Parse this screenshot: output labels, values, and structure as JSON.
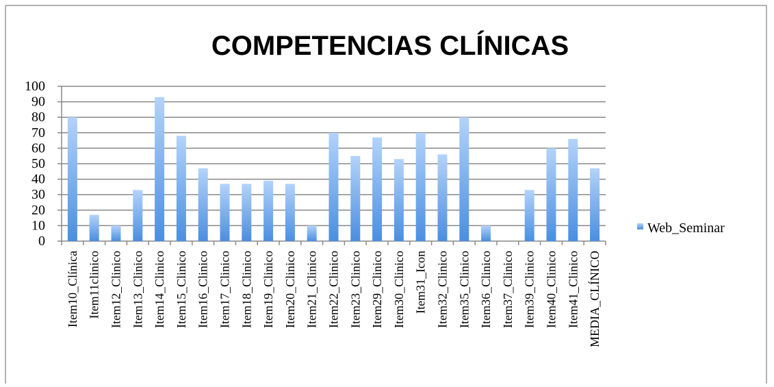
{
  "chart_data": {
    "type": "bar",
    "title": "COMPETENCIAS CLÍNICAS",
    "categories": [
      "Item10_Clínica",
      "Item11clinico",
      "Item12_Clinico",
      "Item13_Clinico",
      "Item14_Clinico",
      "Item15_Clinico",
      "Item16_Clinico",
      "Item17_Clinico",
      "Item18_Clinico",
      "Item19_Clinico",
      "Item20_Clinico",
      "Item21_Clinico",
      "Item22_Clinico",
      "Item23_Clinico",
      "Item29_Clinico",
      "Item30_Clinico",
      "Item31_Icon",
      "Item32_Clinico",
      "Item35_Clinico",
      "Item36_Clinico",
      "Item37_Clinico",
      "Item39_Clinico",
      "Item40_Clinico",
      "Item41_Clinico",
      "MEDIA_CLÍNICO"
    ],
    "series": [
      {
        "name": "Web_Seminar",
        "color": "#5b9be6",
        "values": [
          80,
          17,
          10,
          33,
          93,
          68,
          47,
          37,
          37,
          39,
          37,
          10,
          70,
          55,
          67,
          53,
          70,
          56,
          80,
          10,
          0,
          33,
          60,
          66,
          47
        ]
      }
    ],
    "ylim": [
      0,
      100
    ],
    "yticks": [
      0,
      10,
      20,
      30,
      40,
      50,
      60,
      70,
      80,
      90,
      100
    ],
    "grid": true,
    "legend": "right"
  }
}
